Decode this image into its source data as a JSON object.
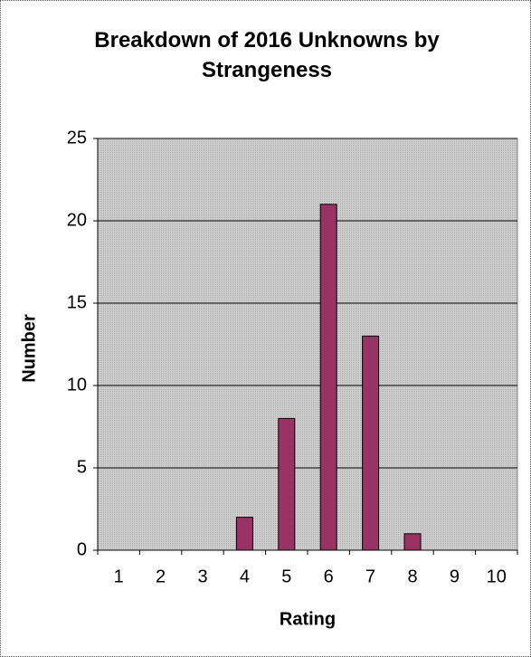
{
  "chart_data": {
    "type": "bar",
    "title": "Breakdown of 2016 Unknowns by Strangeness",
    "x_label": "Rating",
    "y_label": "Number",
    "categories": [
      "1",
      "2",
      "3",
      "4",
      "5",
      "6",
      "7",
      "8",
      "9",
      "10"
    ],
    "values": [
      0,
      0,
      0,
      2,
      8,
      21,
      13,
      1,
      0,
      0
    ],
    "color": "#993366",
    "ylim": [
      0,
      25
    ],
    "yticks": [
      0,
      5,
      10,
      15,
      20,
      25
    ],
    "grid": true
  }
}
